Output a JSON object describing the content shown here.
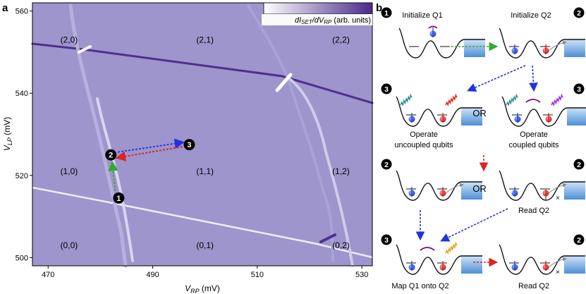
{
  "panel_a": {
    "label": "a",
    "colorbar_label": "dIₛₑₜ/dVᴿᴾ (arb. units)",
    "colorbar_label_parts": {
      "prefix": "dI",
      "sub1": "SET",
      "mid": "/dV",
      "sub2": "RP",
      "suffix": " (arb. units)"
    },
    "charge_states": [
      "(2,0)",
      "(2,1)",
      "(2,2)",
      "(1,0)",
      "(1,1)",
      "(1,2)",
      "(0,0)",
      "(0,1)",
      "(0,2)"
    ],
    "markers": [
      "1",
      "2",
      "3"
    ],
    "colors": {
      "background": "#9d95cc",
      "dark_line": "#4a2a8a",
      "light_line": "#f3f1fa",
      "blue_arrow": "#2233dd",
      "red_arrow": "#dd2222",
      "green_arrow": "#33aa33"
    }
  },
  "chart_data": {
    "type": "heatmap",
    "title": "",
    "xlabel_parts": {
      "base": "V",
      "sub": "RP",
      "unit": " (mV)"
    },
    "ylabel_parts": {
      "base": "V",
      "sub": "LP",
      "unit": " (mV)"
    },
    "x_ticks": [
      470,
      490,
      510,
      530
    ],
    "y_ticks": [
      500,
      520,
      540,
      560
    ],
    "xlim": [
      467,
      532
    ],
    "ylim": [
      498,
      562
    ],
    "colorbar": "dI_SET/dV_RP (arb. units)",
    "charge_state_regions": [
      {
        "label": "(2,0)",
        "x": 474,
        "y": 553
      },
      {
        "label": "(2,1)",
        "x": 500,
        "y": 553
      },
      {
        "label": "(2,2)",
        "x": 526,
        "y": 553
      },
      {
        "label": "(1,0)",
        "x": 474,
        "y": 521
      },
      {
        "label": "(1,1)",
        "x": 500,
        "y": 521
      },
      {
        "label": "(1,2)",
        "x": 526,
        "y": 521
      },
      {
        "label": "(0,0)",
        "x": 474,
        "y": 503
      },
      {
        "label": "(0,1)",
        "x": 500,
        "y": 503
      },
      {
        "label": "(0,2)",
        "x": 526,
        "y": 503
      }
    ],
    "operating_points": [
      {
        "label": "1",
        "x": 483.5,
        "y": 514.5
      },
      {
        "label": "2",
        "x": 482,
        "y": 525
      },
      {
        "label": "3",
        "x": 497,
        "y": 527.5
      }
    ]
  },
  "panel_b": {
    "label": "b",
    "steps": [
      {
        "badge": "1",
        "title": "Initialize Q1"
      },
      {
        "badge": "2",
        "title": "Initialize Q2"
      },
      {
        "badge": "3",
        "caption1": "Operate",
        "caption2": "uncoupled qubits"
      },
      {
        "badge": "3",
        "caption1": "Operate",
        "caption2": "coupled qubits"
      },
      {
        "badge": "2",
        "caption": ""
      },
      {
        "badge": "2",
        "caption": "Read Q2"
      },
      {
        "badge": "3",
        "caption": "Map Q1 onto Q2"
      },
      {
        "badge": "2",
        "caption": "Read Q2"
      }
    ],
    "or_label": "OR"
  }
}
